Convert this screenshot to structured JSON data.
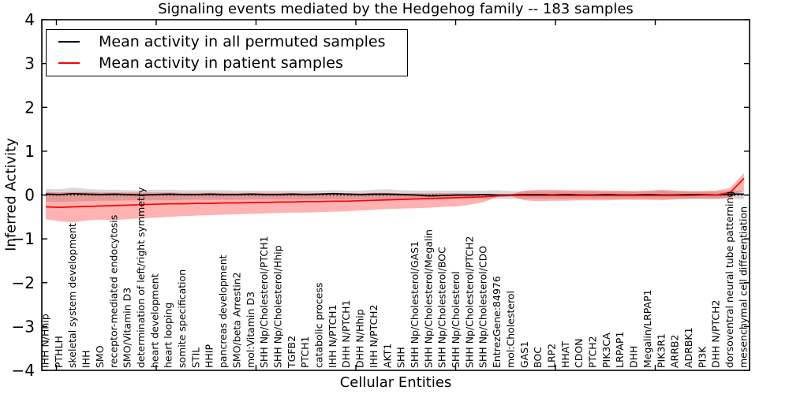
{
  "title": "Signaling events mediated by the Hedgehog family -- 183 samples",
  "chart_data": {
    "type": "line",
    "title": "Signaling events mediated by the Hedgehog family -- 183 samples",
    "xlabel": "Cellular Entities",
    "ylabel": "Inferred Activity",
    "ylim": [
      -4,
      4
    ],
    "yticks": [
      4,
      3,
      2,
      1,
      0,
      -1,
      -2,
      -3,
      -4
    ],
    "grid": false,
    "legend_position": "upper left",
    "legend": [
      {
        "label": "Mean activity in all permuted samples",
        "color": "#000000"
      },
      {
        "label": "Mean activity in patient samples",
        "color": "#ff0000"
      }
    ],
    "zero_line": {
      "y": 0,
      "style": "dotted",
      "color": "#000000"
    },
    "categories": [
      "IHH N/Hhip",
      "PTHLH",
      "skeletal system development",
      "IHH",
      "SMO",
      "receptor-mediated endocytosis",
      "SMO/Vitamin D3",
      "determination of left/right symmetry",
      "heart development",
      "heart looping",
      "somite specification",
      "STIL",
      "HHIP",
      "pancreas development",
      "SMO/beta Arrestin2",
      "mol:Vitamin D3",
      "SHH Np/Cholesterol/PTCH1",
      "SHH Np/Cholesterol/Hhip",
      "TGFB2",
      "PTCH1",
      "catabolic process",
      "IHH N/PTCH1",
      "DHH N/PTCH1",
      "DHH N/Hhip",
      "IHH N/PTCH2",
      "AKT1",
      "SHH",
      "SHH Np/Cholesterol/GAS1",
      "SHH Np/Cholesterol/Megalin",
      "SHH Np/Cholesterol/BOC",
      "SHH Np/Cholesterol",
      "SHH Np/Cholesterol/PTCH2",
      "SHH Np/Cholesterol/CDO",
      "EntrezGene:84976",
      "mol:Cholesterol",
      "GAS1",
      "BOC",
      "LRP2",
      "HHAT",
      "CDON",
      "PTCH2",
      "PIK3CA",
      "LRPAP1",
      "DHH",
      "Megalin/LRPAP1",
      "PIK3R1",
      "ARRB2",
      "ADRBK1",
      "PI3K",
      "DHH N/PTCH2",
      "dorsoventral neural tube patterning",
      "mesenchymal cell differentiation"
    ],
    "series": [
      {
        "name": "Mean activity in all permuted samples",
        "color": "#000000",
        "values": [
          0.02,
          0.01,
          0.03,
          0.02,
          0.01,
          0.02,
          0.01,
          0.0,
          0.01,
          0.02,
          0.01,
          0.01,
          0.02,
          0.01,
          0.01,
          0.02,
          0.01,
          0.01,
          0.02,
          0.01,
          0.02,
          0.03,
          0.02,
          0.01,
          0.02,
          0.02,
          0.01,
          0.0,
          -0.02,
          -0.01,
          0.0,
          0.0,
          0.01,
          0.0,
          0.0,
          0.01,
          0.01,
          0.0,
          0.01,
          0.0,
          0.0,
          0.01,
          0.0,
          0.0,
          0.01,
          0.0,
          0.0,
          0.01,
          0.01,
          0.0,
          0.02,
          0.02
        ]
      },
      {
        "name": "Mean activity in patient samples",
        "color": "#ff0000",
        "values": [
          -0.27,
          -0.28,
          -0.27,
          -0.26,
          -0.25,
          -0.24,
          -0.23,
          -0.22,
          -0.21,
          -0.2,
          -0.2,
          -0.19,
          -0.19,
          -0.18,
          -0.18,
          -0.17,
          -0.17,
          -0.16,
          -0.16,
          -0.15,
          -0.15,
          -0.14,
          -0.14,
          -0.13,
          -0.12,
          -0.11,
          -0.1,
          -0.09,
          -0.08,
          -0.07,
          -0.06,
          -0.05,
          -0.04,
          -0.02,
          -0.01,
          -0.01,
          -0.01,
          -0.01,
          -0.01,
          -0.01,
          -0.01,
          -0.01,
          -0.01,
          -0.01,
          -0.01,
          -0.01,
          -0.01,
          -0.01,
          0.0,
          0.0,
          0.06,
          0.38
        ]
      }
    ],
    "bands": [
      {
        "name": "permuted samples spread",
        "color": "rgba(128,128,128,0.30)",
        "upper": [
          0.14,
          0.13,
          0.17,
          0.14,
          0.12,
          0.12,
          0.11,
          0.11,
          0.12,
          0.12,
          0.11,
          0.11,
          0.11,
          0.11,
          0.1,
          0.1,
          0.1,
          0.1,
          0.1,
          0.1,
          0.1,
          0.11,
          0.1,
          0.1,
          0.12,
          0.13,
          0.11,
          0.1,
          0.1,
          0.1,
          0.1,
          0.1,
          0.1,
          0.11,
          0.09,
          0.09,
          0.09,
          0.09,
          0.09,
          0.09,
          0.08,
          0.08,
          0.08,
          0.08,
          0.09,
          0.1,
          0.09,
          0.08,
          0.08,
          0.08,
          0.09,
          0.1
        ],
        "lower": [
          -0.15,
          -0.16,
          -0.15,
          -0.14,
          -0.13,
          -0.13,
          -0.12,
          -0.12,
          -0.12,
          -0.12,
          -0.11,
          -0.11,
          -0.11,
          -0.11,
          -0.11,
          -0.1,
          -0.1,
          -0.1,
          -0.1,
          -0.1,
          -0.1,
          -0.1,
          -0.1,
          -0.1,
          -0.1,
          -0.1,
          -0.1,
          -0.1,
          -0.1,
          -0.1,
          -0.09,
          -0.09,
          -0.09,
          -0.09,
          -0.09,
          -0.09,
          -0.09,
          -0.09,
          -0.09,
          -0.08,
          -0.08,
          -0.08,
          -0.08,
          -0.08,
          -0.08,
          -0.08,
          -0.08,
          -0.08,
          -0.08,
          -0.08,
          -0.09,
          -0.1
        ]
      },
      {
        "name": "patient samples spread",
        "color": "rgba(255,0,0,0.30)",
        "upper": [
          0.07,
          0.06,
          0.07,
          0.07,
          0.06,
          0.06,
          0.06,
          0.06,
          0.06,
          0.06,
          0.05,
          0.05,
          0.05,
          0.05,
          0.05,
          0.05,
          0.05,
          0.05,
          0.05,
          0.05,
          0.04,
          0.05,
          0.04,
          0.04,
          0.05,
          0.05,
          0.04,
          0.04,
          0.04,
          0.04,
          0.04,
          0.03,
          0.02,
          0.01,
          0.02,
          0.1,
          0.12,
          0.12,
          0.11,
          0.11,
          0.11,
          0.1,
          0.1,
          0.09,
          0.1,
          0.12,
          0.1,
          0.09,
          0.09,
          0.1,
          0.16,
          0.5
        ],
        "lower": [
          -0.55,
          -0.6,
          -0.62,
          -0.58,
          -0.56,
          -0.57,
          -0.55,
          -0.53,
          -0.52,
          -0.5,
          -0.48,
          -0.47,
          -0.46,
          -0.45,
          -0.44,
          -0.43,
          -0.42,
          -0.41,
          -0.4,
          -0.4,
          -0.39,
          -0.38,
          -0.37,
          -0.35,
          -0.34,
          -0.32,
          -0.31,
          -0.3,
          -0.29,
          -0.27,
          -0.26,
          -0.22,
          -0.16,
          -0.04,
          -0.03,
          -0.12,
          -0.14,
          -0.13,
          -0.13,
          -0.12,
          -0.12,
          -0.12,
          -0.11,
          -0.11,
          -0.11,
          -0.12,
          -0.1,
          -0.09,
          -0.09,
          -0.09,
          -0.06,
          0.1
        ]
      }
    ]
  }
}
